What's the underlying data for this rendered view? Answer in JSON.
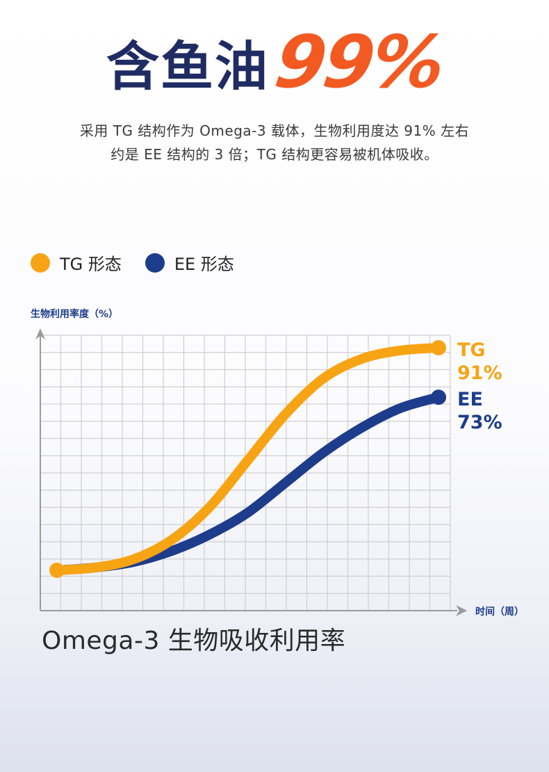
{
  "headline": {
    "text": "含鱼油",
    "number": "99%"
  },
  "subtitle": {
    "line1": "采用 TG 结构作为 Omega-3 载体，生物利用度达 91% 左右",
    "line2": "约是 EE 结构的 3 倍；TG 结构更容易被机体吸收。"
  },
  "legend": [
    {
      "label": "TG 形态",
      "color": "#f7a414"
    },
    {
      "label": "EE 形态",
      "color": "#1d3c8c"
    }
  ],
  "chart_title": "Omega-3 生物吸收利用率",
  "colors": {
    "orange": "#f7a414",
    "blue": "#1d3c8c",
    "grid": "#cfcfcf",
    "axis": "#9a9a9a"
  },
  "chart_data": {
    "type": "line",
    "title": "Omega-3 生物吸收利用率",
    "ylabel": "生物利用率度（%）",
    "xlabel": "时间（周）",
    "xlim": [
      0,
      10
    ],
    "ylim": [
      0,
      100
    ],
    "grid": true,
    "series": [
      {
        "name": "TG",
        "label_name": "TG",
        "label_value": "91%",
        "color": "#f7a414",
        "x": [
          0,
          1,
          2,
          3,
          4,
          5,
          6,
          7,
          8,
          9,
          10
        ],
        "values": [
          10,
          11,
          14,
          21,
          33,
          50,
          67,
          80,
          87,
          90,
          91
        ]
      },
      {
        "name": "EE",
        "label_name": "EE",
        "label_value": "73%",
        "color": "#1d3c8c",
        "x": [
          0,
          1,
          2,
          3,
          4,
          5,
          6,
          7,
          8,
          9,
          10
        ],
        "values": [
          10,
          11,
          13,
          17,
          23,
          31,
          42,
          53,
          62,
          69,
          73
        ]
      }
    ]
  }
}
